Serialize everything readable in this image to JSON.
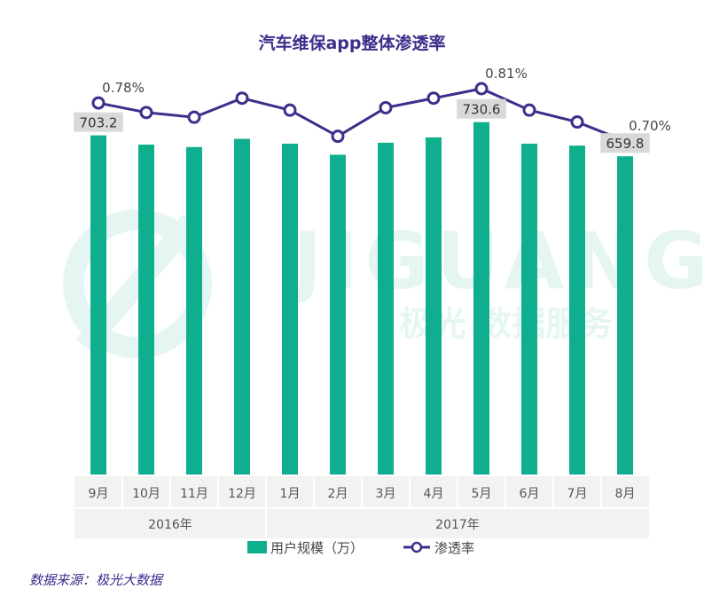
{
  "chart_data": {
    "type": "bar",
    "title": "汽车维保app整体渗透率",
    "categories": [
      "9月",
      "10月",
      "11月",
      "12月",
      "1月",
      "2月",
      "3月",
      "4月",
      "5月",
      "6月",
      "7月",
      "8月"
    ],
    "groups": [
      {
        "label": "2016年",
        "span": 4
      },
      {
        "label": "2017年",
        "span": 8
      }
    ],
    "series": [
      {
        "name": "用户规模（万）",
        "type": "bar",
        "color": "#0fae8c",
        "values": [
          703.2,
          684,
          679,
          696,
          686,
          663,
          688,
          699,
          730.6,
          686,
          682,
          659.8
        ],
        "labels": {
          "0": "703.2",
          "8": "730.6",
          "11": "659.8"
        }
      },
      {
        "name": "渗透率",
        "type": "line",
        "color": "#3b2f8c",
        "values": [
          0.78,
          0.76,
          0.75,
          0.79,
          0.765,
          0.71,
          0.77,
          0.79,
          0.81,
          0.765,
          0.74,
          0.7
        ],
        "labels": {
          "0": "0.78%",
          "8": "0.81%",
          "11": "0.70%"
        }
      }
    ],
    "legend": [
      "用户规模（万）",
      "渗透率"
    ],
    "legend_position": "bottom",
    "grid": false,
    "watermark": "JIGUANG 极光 数据服务"
  },
  "source_note": "数据来源：极光大数据"
}
